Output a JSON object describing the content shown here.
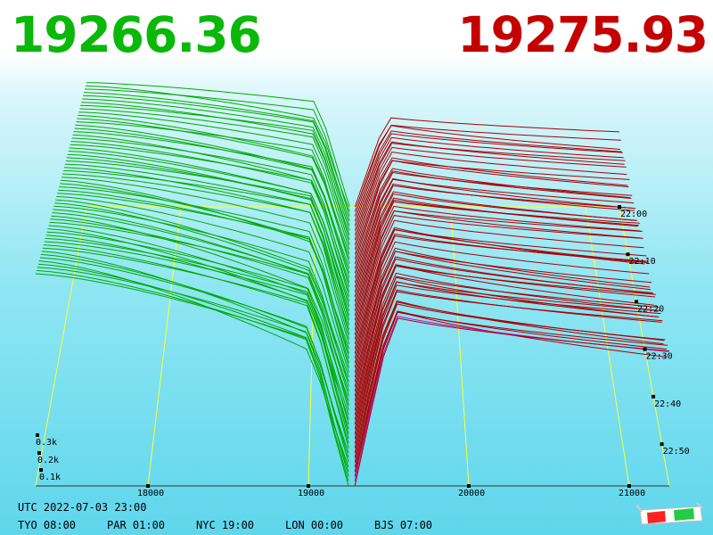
{
  "header": {
    "bid_price": "19266.36",
    "ask_price": "19275.93",
    "bid_color": "#0ab80a",
    "ask_color": "#c40000"
  },
  "footer": {
    "utc": "UTC 2022-07-03 23:00",
    "cities": [
      {
        "label": "TYO 08:00"
      },
      {
        "label": "PAR 01:00"
      },
      {
        "label": "NYC 19:00"
      },
      {
        "label": "LON 00:00"
      },
      {
        "label": "BJS 07:00"
      }
    ]
  },
  "icons": {
    "glasses": "3d-glasses-icon"
  },
  "chart_data": {
    "type": "3d-depth",
    "title": "",
    "x_ticks": [
      "18000",
      "19000",
      "20000",
      "21000"
    ],
    "time_ticks": [
      "22:00",
      "22:10",
      "22:20",
      "22:30",
      "22:40",
      "22:50"
    ],
    "volume_ticks": [
      "0.3k",
      "0.2k",
      "0.1k"
    ],
    "x_range": [
      17300,
      21250
    ],
    "bid_color": "#00aa00",
    "ask_color": "#aa0000",
    "latest_ask_color": "#cc00cc",
    "grid_color": "#ffff33",
    "bid_depth_start": [
      0.68,
      0.7
    ],
    "bid_depth_end": [
      0.45,
      0.28
    ],
    "ask_depth_start": [
      0.52,
      0.6
    ],
    "ask_depth_end": [
      0.32,
      0.35
    ]
  }
}
